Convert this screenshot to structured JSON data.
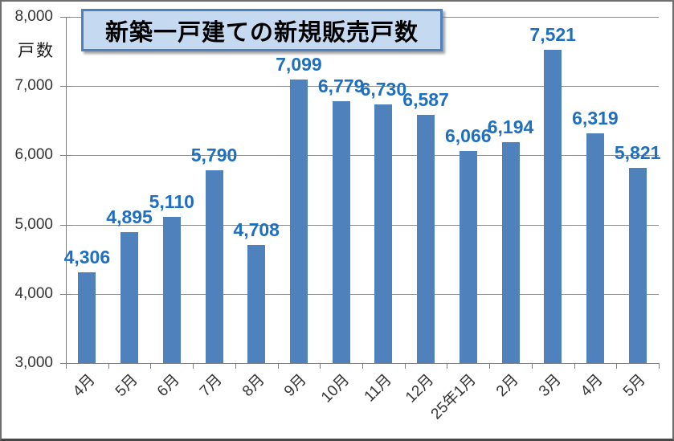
{
  "chart_data": {
    "type": "bar",
    "title": "新築一戸建ての新規販売戸数",
    "ylabel": "戸数",
    "xlabel": "",
    "categories": [
      "4月",
      "5月",
      "6月",
      "7月",
      "8月",
      "9月",
      "10月",
      "11月",
      "12月",
      "25年1月",
      "2月",
      "3月",
      "4月",
      "5月"
    ],
    "values": [
      4306,
      4895,
      5110,
      5790,
      4708,
      7099,
      6779,
      6730,
      6587,
      6066,
      6194,
      7521,
      6319,
      5821
    ],
    "data_labels": [
      "4,306",
      "4,895",
      "5,110",
      "5,790",
      "4,708",
      "7,099",
      "6,779",
      "6,730",
      "6,587",
      "6,066",
      "6,194",
      "7,521",
      "6,319",
      "5,821"
    ],
    "ylim": [
      3000,
      8000
    ],
    "ytick_step": 1000,
    "ytick_labels": [
      "3,000",
      "4,000",
      "5,000",
      "6,000",
      "7,000",
      "8,000"
    ],
    "grid": true,
    "legend_position": "none",
    "colors": {
      "bar": "#4f81bd",
      "data_label": "#1f6fc0",
      "gridline": "#8c8c8c",
      "axis": "#7f7f7f",
      "axis_text": "#333333",
      "title_text": "#000000",
      "title_box_fill": "#c5d9f1",
      "title_box_border": "#4f81bd"
    }
  }
}
